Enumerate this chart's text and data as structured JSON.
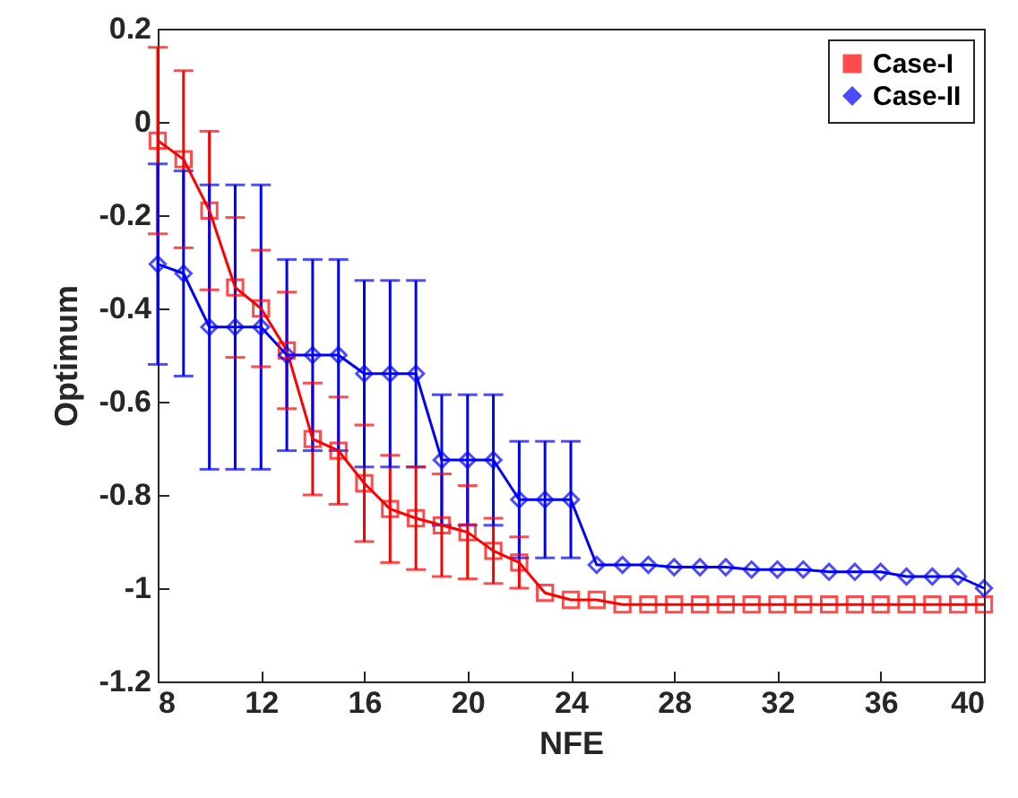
{
  "chart_data": {
    "type": "line",
    "xlabel": "NFE",
    "ylabel": "Optimum",
    "x": [
      8,
      9,
      10,
      11,
      12,
      13,
      14,
      15,
      16,
      17,
      18,
      19,
      20,
      21,
      22,
      23,
      24,
      25,
      26,
      27,
      28,
      29,
      30,
      31,
      32,
      33,
      34,
      35,
      36,
      37,
      38,
      39,
      40
    ],
    "xlim": [
      8,
      40
    ],
    "xticks": [
      8,
      12,
      16,
      20,
      24,
      28,
      32,
      36,
      40
    ],
    "ylim": [
      -1.2,
      0.2
    ],
    "yticks": [
      -1.2,
      -1,
      -0.8,
      -0.6,
      -0.4,
      -0.2,
      0,
      0.2
    ],
    "legend": "top right",
    "grid": false,
    "series": [
      {
        "name": "Case-I",
        "color": "#ff0000",
        "marker": "square",
        "values": [
          -0.04,
          -0.08,
          -0.19,
          -0.355,
          -0.4,
          -0.49,
          -0.68,
          -0.705,
          -0.775,
          -0.83,
          -0.85,
          -0.865,
          -0.88,
          -0.92,
          -0.945,
          -1.01,
          -1.025,
          -1.025,
          -1.035,
          -1.035,
          -1.035,
          -1.035,
          -1.035,
          -1.035,
          -1.035,
          -1.035,
          -1.035,
          -1.035,
          -1.035,
          -1.035,
          -1.035,
          -1.035,
          -1.035
        ],
        "errors": [
          0.2,
          0.19,
          0.17,
          0.15,
          0.125,
          0.125,
          0.12,
          0.115,
          0.125,
          0.115,
          0.11,
          0.11,
          0.1,
          0.07,
          0.055,
          null,
          null,
          null,
          null,
          null,
          null,
          null,
          null,
          null,
          null,
          null,
          null,
          null,
          null,
          null,
          null,
          null,
          null
        ]
      },
      {
        "name": "Case-II",
        "color": "#0000ff",
        "marker": "diamond",
        "values": [
          -0.305,
          -0.325,
          -0.44,
          -0.44,
          -0.44,
          -0.5,
          -0.5,
          -0.5,
          -0.54,
          -0.54,
          -0.54,
          -0.725,
          -0.725,
          -0.725,
          -0.81,
          -0.81,
          -0.81,
          -0.95,
          -0.95,
          -0.95,
          -0.955,
          -0.955,
          -0.955,
          -0.96,
          -0.96,
          -0.96,
          -0.965,
          -0.965,
          -0.965,
          -0.975,
          -0.975,
          -0.975,
          -1.0
        ],
        "errors": [
          0.215,
          0.22,
          0.305,
          0.305,
          0.305,
          0.205,
          0.205,
          0.205,
          0.2,
          0.2,
          0.2,
          0.14,
          0.14,
          0.14,
          0.125,
          0.125,
          0.125,
          null,
          null,
          null,
          null,
          null,
          null,
          null,
          null,
          null,
          null,
          null,
          null,
          null,
          null,
          null,
          null
        ]
      }
    ]
  }
}
